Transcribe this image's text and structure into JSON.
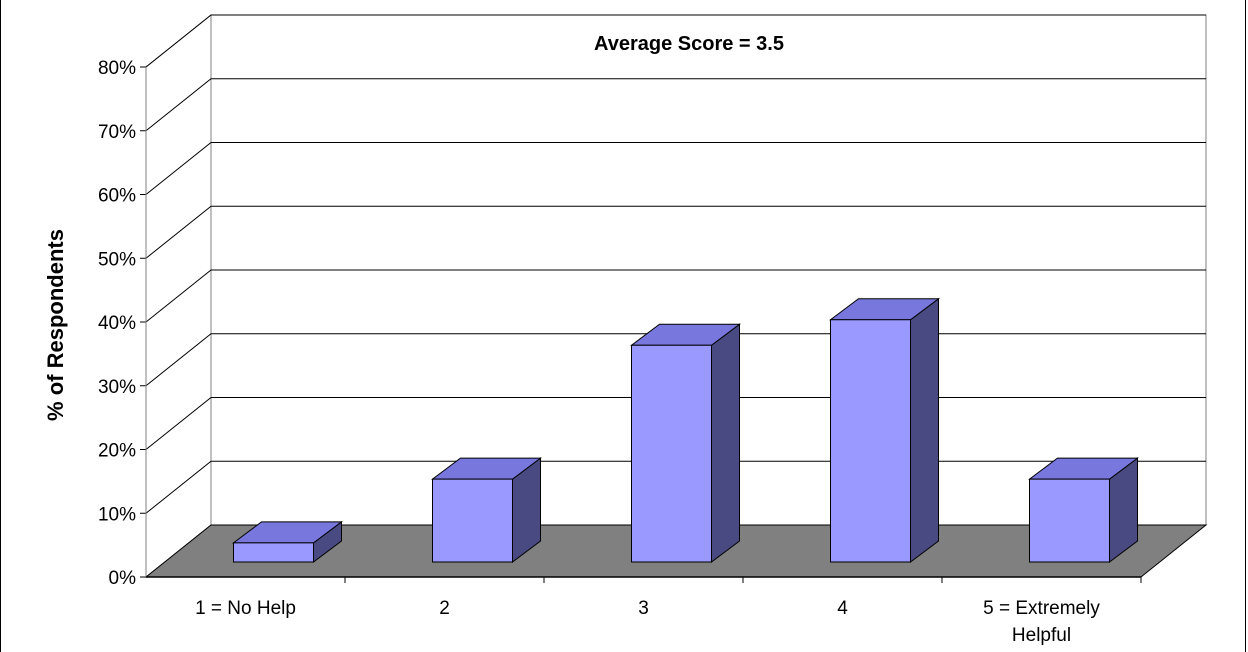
{
  "chart_data": {
    "type": "bar",
    "title": "Average Score = 3.5",
    "xlabel": "",
    "ylabel": "% of Respondents",
    "categories": [
      "1 = No Help",
      "2",
      "3",
      "4",
      "5 = Extremely Helpful"
    ],
    "values": [
      3,
      13,
      34,
      38,
      13
    ],
    "ylim": [
      0,
      80
    ],
    "yticks": [
      "0%",
      "10%",
      "20%",
      "30%",
      "40%",
      "50%",
      "60%",
      "70%",
      "80%"
    ],
    "grid": true,
    "three_d": true,
    "colors": {
      "bar_front": "#9999ff",
      "bar_top": "#7777dd",
      "bar_side": "#4a4a82",
      "floor": "#808080",
      "grid": "#000000",
      "wall": "#ffffff"
    }
  }
}
